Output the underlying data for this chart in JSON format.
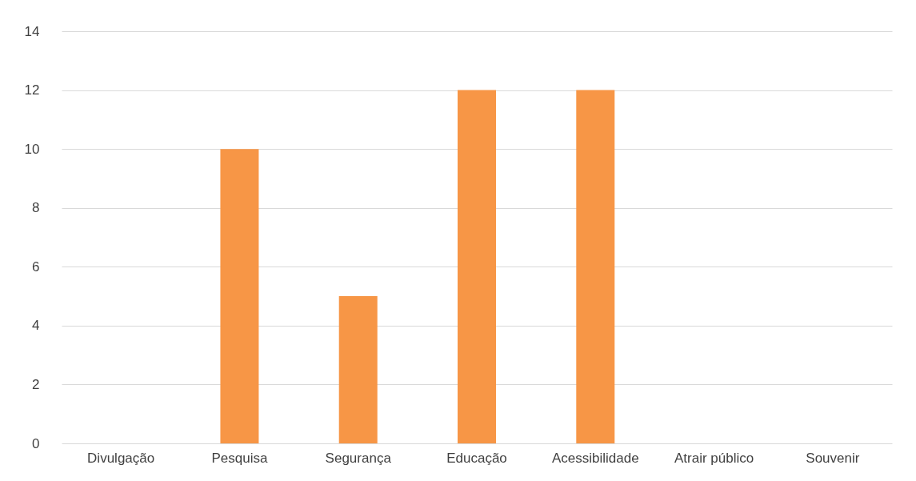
{
  "chart_data": {
    "type": "bar",
    "categories": [
      "Divulgação",
      "Pesquisa",
      "Segurança",
      "Educação",
      "Acessibilidade",
      "Atrair público",
      "Souvenir"
    ],
    "values": [
      0,
      10,
      5,
      12,
      12,
      0,
      0
    ],
    "color": "#f79646",
    "ylim": [
      0,
      14
    ],
    "yticks": [
      0,
      2,
      4,
      6,
      8,
      10,
      12,
      14
    ],
    "grid": "y"
  }
}
